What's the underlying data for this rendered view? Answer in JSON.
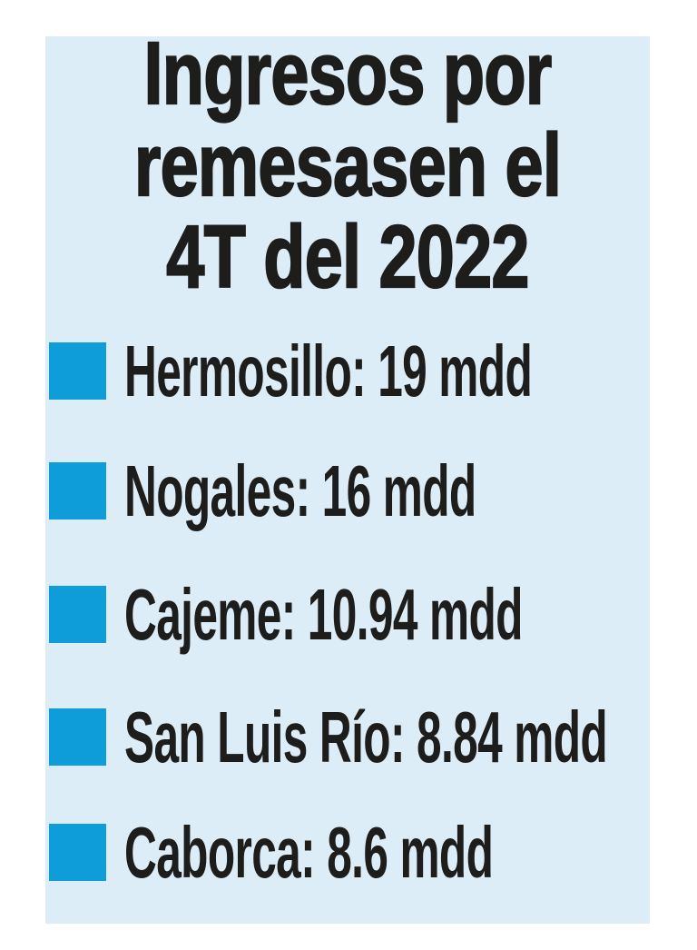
{
  "title": {
    "lines": [
      "Ingresos por",
      "remesasen el",
      "4T del 2022"
    ],
    "full": "Ingresos por remesasen el 4T del 2022"
  },
  "items": [
    {
      "label": "Hermosillo",
      "value": 19,
      "unit": "mdd",
      "text": "Hermosillo: 19 mdd"
    },
    {
      "label": "Nogales",
      "value": 16,
      "unit": "mdd",
      "text": "Nogales: 16 mdd"
    },
    {
      "label": "Cajeme",
      "value": 10.94,
      "unit": "mdd",
      "text": "Cajeme: 10.94 mdd"
    },
    {
      "label": "San Luis Río",
      "value": 8.84,
      "unit": "mdd",
      "text": "San Luis Río: 8.84 mdd"
    },
    {
      "label": "Caborca",
      "value": 8.6,
      "unit": "mdd",
      "text": "Caborca: 8.6 mdd"
    }
  ],
  "colors": {
    "panel_bg": "#ddedf8",
    "bullet": "#0f9dda",
    "text_color": "#1d1d1b",
    "page_bg": "#ffffff"
  },
  "chart_data": {
    "type": "table",
    "title": "Ingresos por remesasen el 4T del 2022",
    "categories": [
      "Hermosillo",
      "Nogales",
      "Cajeme",
      "San Luis Río",
      "Caborca"
    ],
    "values": [
      19,
      16,
      10.94,
      8.84,
      8.6
    ],
    "unit": "mdd",
    "legend_position": "none",
    "grid": false
  }
}
